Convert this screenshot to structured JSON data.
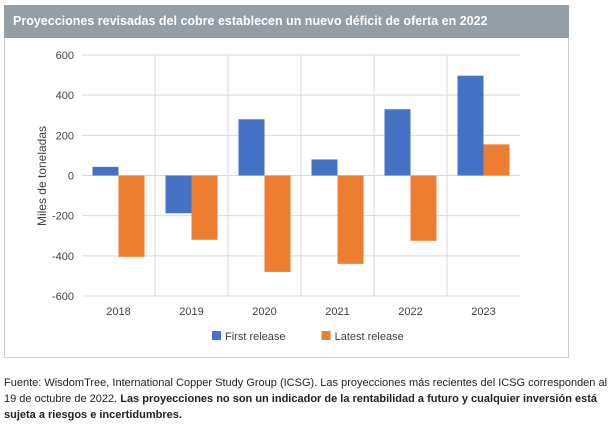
{
  "header": {
    "title": "Proyecciones revisadas del cobre establecen un nuevo déficit de oferta en 2022"
  },
  "chart_data": {
    "type": "bar",
    "title": "Proyecciones revisadas del cobre establecen un nuevo déficit de oferta en 2022",
    "xlabel": "",
    "ylabel": "Miles de toneladas",
    "ylim": [
      -600,
      600
    ],
    "yticks": [
      600,
      400,
      200,
      0,
      -200,
      -400,
      -600
    ],
    "ytick_labels": [
      "600",
      "400",
      "200",
      "0",
      "-200",
      "-400",
      "-600"
    ],
    "grid": true,
    "legend_position": "bottom",
    "categories": [
      "2018",
      "2019",
      "2020",
      "2021",
      "2022",
      "2023"
    ],
    "series": [
      {
        "name": "First release",
        "color": "#4472c4",
        "values": [
          43,
          -188,
          280,
          80,
          330,
          497
        ]
      },
      {
        "name": "Latest release",
        "color": "#ed7d31",
        "values": [
          -405,
          -320,
          -480,
          -440,
          -325,
          155
        ]
      }
    ]
  },
  "footnote": {
    "normal": "Fuente: WisdomTree, International Copper Study Group (ICSG). Las proyecciones más recientes del ICSG corresponden al 19 de octubre de 2022. ",
    "bold": "Las proyecciones no son un indicador de la rentabilidad a futuro y cualquier inversión está sujeta a riesgos e incertidumbres."
  },
  "colors": {
    "header_bg": "#939ea6",
    "gridline": "#d9d9d9",
    "text": "#404040"
  }
}
